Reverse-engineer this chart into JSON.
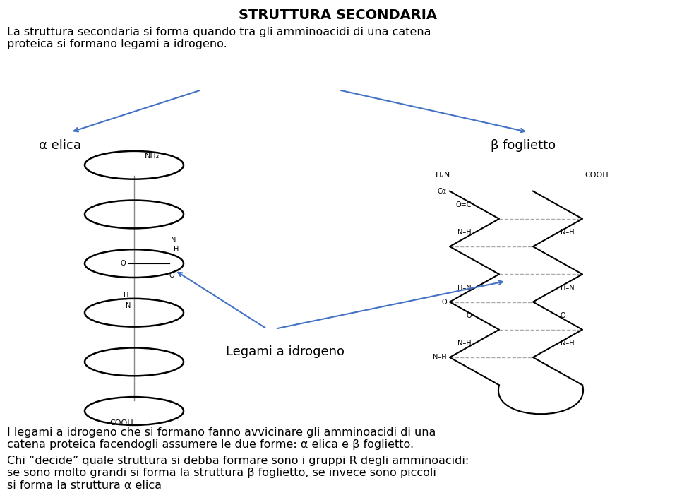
{
  "title": "STRUTTURA SECONDARIA",
  "intro_text": "La struttura secondaria si forma quando tra gli amminoacidi di una catena\nproteica si formano legami a idrogeno.",
  "alpha_label": "α elica",
  "beta_label": "β foglietto",
  "legami_label": "Legami a idrogeno",
  "body_text1": "I legami a idrogeno che si formano fanno avvicinare gli amminoacidi di una\ncatena proteica facendogli assumere le due forme: α elica e β foglietto.",
  "body_text2": "Chi “decide” quale struttura si debba formare sono i gruppi R degli amminoacidi:\nse sono molto grandi si forma la struttura β foglietto, se invece sono piccoli\nsi forma la struttura α elica",
  "bg_color": "#ffffff",
  "text_color": "#000000",
  "arrow_color": "#4472c4",
  "title_fontsize": 14,
  "body_fontsize": 11.5,
  "label_fontsize": 13
}
